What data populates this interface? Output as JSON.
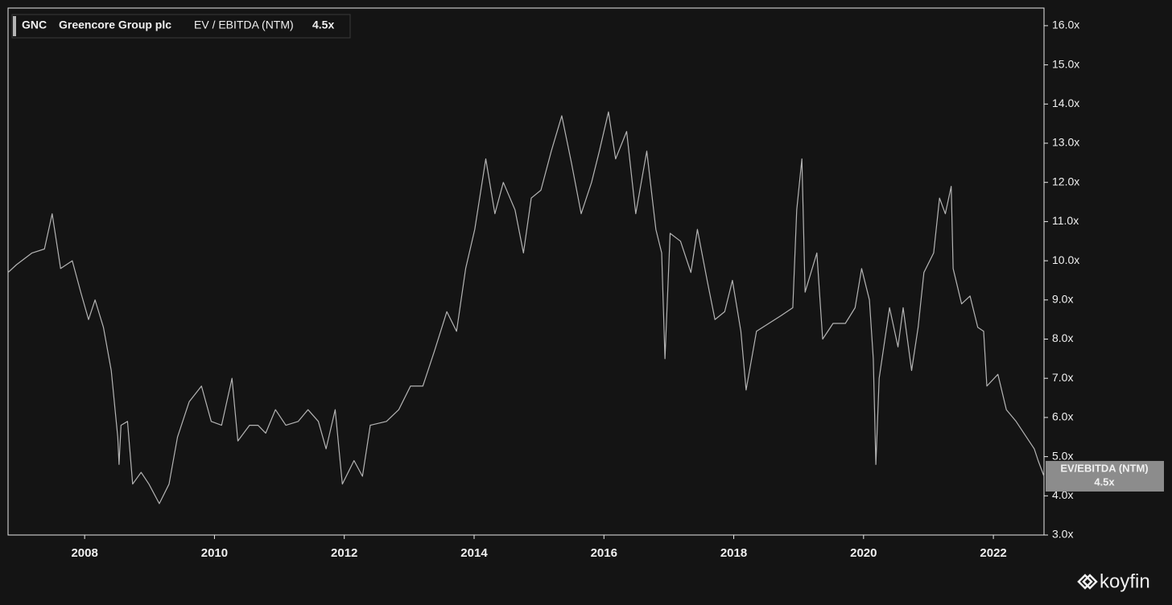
{
  "chart_data": {
    "type": "line",
    "ticker": "GNC",
    "title": "Greencore Group plc",
    "last_value_label": "4.5x",
    "end_label_name": "EV/EBITDA (NTM)",
    "x": [
      2006.82,
      2006.95,
      2007.19,
      2007.38,
      2007.5,
      2007.63,
      2007.81,
      2007.94,
      2008.06,
      2008.16,
      2008.29,
      2008.41,
      2008.51,
      2008.53,
      2008.56,
      2008.66,
      2008.74,
      2008.87,
      2008.99,
      2009.15,
      2009.3,
      2009.43,
      2009.61,
      2009.8,
      2009.95,
      2010.11,
      2010.27,
      2010.36,
      2010.54,
      2010.67,
      2010.79,
      2010.94,
      2011.1,
      2011.29,
      2011.44,
      2011.6,
      2011.72,
      2011.86,
      2011.97,
      2012.15,
      2012.28,
      2012.4,
      2012.65,
      2012.84,
      2013.02,
      2013.21,
      2013.39,
      2013.58,
      2013.73,
      2013.87,
      2014.01,
      2014.18,
      2014.32,
      2014.45,
      2014.63,
      2014.76,
      2014.88,
      2015.03,
      2015.19,
      2015.35,
      2015.5,
      2015.65,
      2015.81,
      2015.93,
      2016.07,
      2016.18,
      2016.35,
      2016.49,
      2016.66,
      2016.8,
      2016.89,
      2016.94,
      2017.02,
      2017.18,
      2017.34,
      2017.44,
      2017.59,
      2017.71,
      2017.86,
      2017.98,
      2018.11,
      2018.19,
      2018.35,
      2018.54,
      2018.73,
      2018.91,
      2018.97,
      2019.05,
      2019.1,
      2019.28,
      2019.37,
      2019.53,
      2019.72,
      2019.87,
      2019.97,
      2020.09,
      2020.15,
      2020.19,
      2020.24,
      2020.4,
      2020.53,
      2020.61,
      2020.74,
      2020.84,
      2020.93,
      2021.08,
      2021.17,
      2021.26,
      2021.35,
      2021.38,
      2021.51,
      2021.64,
      2021.76,
      2021.85,
      2021.9,
      2022.07,
      2022.2,
      2022.35,
      2022.51,
      2022.63,
      2022.69,
      2022.78
    ],
    "series": [
      {
        "name": "EV / EBITDA (NTM)",
        "color": "#b4b4b4",
        "values": [
          9.7,
          9.9,
          10.2,
          10.3,
          11.2,
          9.8,
          10.0,
          9.2,
          8.5,
          9.0,
          8.3,
          7.2,
          5.5,
          4.8,
          5.8,
          5.9,
          4.3,
          4.6,
          4.3,
          3.8,
          4.3,
          5.5,
          6.4,
          6.8,
          5.9,
          5.8,
          7.0,
          5.4,
          5.8,
          5.8,
          5.6,
          6.2,
          5.8,
          5.9,
          6.2,
          5.9,
          5.2,
          6.2,
          4.3,
          4.9,
          4.5,
          5.8,
          5.9,
          6.2,
          6.8,
          6.8,
          7.7,
          8.7,
          8.2,
          9.8,
          10.8,
          12.6,
          11.2,
          12.0,
          11.3,
          10.2,
          11.6,
          11.8,
          12.8,
          13.7,
          12.5,
          11.2,
          12.0,
          12.8,
          13.8,
          12.6,
          13.3,
          11.2,
          12.8,
          10.8,
          10.2,
          7.5,
          10.7,
          10.5,
          9.7,
          10.8,
          9.5,
          8.5,
          8.7,
          9.5,
          8.2,
          6.7,
          8.2,
          8.4,
          8.6,
          8.8,
          11.3,
          12.6,
          9.2,
          10.2,
          8.0,
          8.4,
          8.4,
          8.8,
          9.8,
          9.0,
          7.5,
          4.8,
          7.0,
          8.8,
          7.8,
          8.8,
          7.2,
          8.3,
          9.7,
          10.2,
          11.6,
          11.2,
          11.9,
          9.8,
          8.9,
          9.1,
          8.3,
          8.2,
          6.8,
          7.1,
          6.2,
          5.9,
          5.5,
          5.2,
          4.9,
          4.5
        ]
      }
    ],
    "xlim": [
      2006.82,
      2022.78
    ],
    "xticks": [
      2008,
      2010,
      2012,
      2014,
      2016,
      2018,
      2020,
      2022
    ],
    "ylim": [
      3,
      16.45
    ],
    "yticks": [
      {
        "value": 3,
        "label": "3.0x"
      },
      {
        "value": 4,
        "label": "4.0x"
      },
      {
        "value": 5,
        "label": "5.0x"
      },
      {
        "value": 6,
        "label": "6.0x"
      },
      {
        "value": 7,
        "label": "7.0x"
      },
      {
        "value": 8,
        "label": "8.0x"
      },
      {
        "value": 9,
        "label": "9.0x"
      },
      {
        "value": 10,
        "label": "10.0x"
      },
      {
        "value": 11,
        "label": "11.0x"
      },
      {
        "value": 12,
        "label": "12.0x"
      },
      {
        "value": 13,
        "label": "13.0x"
      },
      {
        "value": 14,
        "label": "14.0x"
      },
      {
        "value": 15,
        "label": "15.0x"
      },
      {
        "value": 16,
        "label": "16.0x"
      }
    ],
    "grid": false
  },
  "brand": "koyfin"
}
